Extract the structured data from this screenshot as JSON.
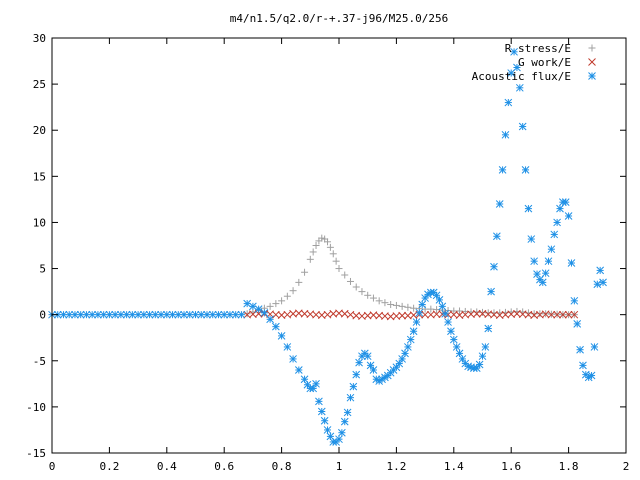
{
  "chart_data": {
    "type": "scatter",
    "title": "m4/n1.5/q2.0/r-+.37-j96/M25.0/256",
    "xlabel": "",
    "ylabel": "",
    "xlim": [
      0,
      2
    ],
    "ylim": [
      -15,
      30
    ],
    "x_ticks": [
      "0",
      "0.2",
      "0.4",
      "0.6",
      "0.8",
      "1",
      "1.2",
      "1.4",
      "1.6",
      "1.8",
      "2"
    ],
    "y_ticks": [
      "-15",
      "-10",
      "-5",
      "0",
      "5",
      "10",
      "15",
      "20",
      "25",
      "30"
    ],
    "grid": false,
    "legend_position": "top-right",
    "series": [
      {
        "name": "R stress/E",
        "marker": "plus",
        "color": "#a0a0a0",
        "points": [
          [
            0.68,
            0.1
          ],
          [
            0.7,
            0.3
          ],
          [
            0.72,
            0.5
          ],
          [
            0.74,
            0.7
          ],
          [
            0.76,
            0.9
          ],
          [
            0.78,
            1.2
          ],
          [
            0.8,
            1.5
          ],
          [
            0.82,
            2.0
          ],
          [
            0.84,
            2.6
          ],
          [
            0.86,
            3.5
          ],
          [
            0.88,
            4.6
          ],
          [
            0.9,
            6.0
          ],
          [
            0.91,
            6.8
          ],
          [
            0.92,
            7.5
          ],
          [
            0.93,
            8.0
          ],
          [
            0.94,
            8.3
          ],
          [
            0.95,
            8.2
          ],
          [
            0.96,
            7.9
          ],
          [
            0.97,
            7.3
          ],
          [
            0.98,
            6.6
          ],
          [
            0.99,
            5.8
          ],
          [
            1.0,
            5.0
          ],
          [
            1.02,
            4.3
          ],
          [
            1.04,
            3.6
          ],
          [
            1.06,
            3.0
          ],
          [
            1.08,
            2.5
          ],
          [
            1.1,
            2.1
          ],
          [
            1.12,
            1.8
          ],
          [
            1.14,
            1.5
          ],
          [
            1.16,
            1.3
          ],
          [
            1.18,
            1.1
          ],
          [
            1.2,
            1.0
          ],
          [
            1.22,
            0.9
          ],
          [
            1.24,
            0.8
          ],
          [
            1.26,
            0.7
          ],
          [
            1.28,
            0.65
          ],
          [
            1.3,
            0.6
          ],
          [
            1.32,
            0.6
          ],
          [
            1.34,
            0.55
          ],
          [
            1.36,
            0.5
          ],
          [
            1.38,
            0.45
          ],
          [
            1.4,
            0.4
          ],
          [
            1.42,
            0.4
          ],
          [
            1.44,
            0.35
          ],
          [
            1.46,
            0.3
          ],
          [
            1.48,
            0.3
          ],
          [
            1.5,
            0.25
          ],
          [
            1.52,
            0.2
          ],
          [
            1.54,
            0.2
          ],
          [
            1.56,
            0.2
          ],
          [
            1.58,
            0.25
          ],
          [
            1.6,
            0.3
          ],
          [
            1.62,
            0.35
          ],
          [
            1.64,
            0.3
          ],
          [
            1.66,
            0.2
          ],
          [
            1.68,
            0.1
          ],
          [
            1.7,
            0.1
          ],
          [
            1.72,
            0.1
          ],
          [
            1.74,
            0.05
          ],
          [
            1.76,
            0.05
          ],
          [
            1.78,
            0.0
          ],
          [
            1.8,
            0.0
          ],
          [
            1.82,
            0.0
          ]
        ]
      },
      {
        "name": "G work/E",
        "marker": "cross",
        "color": "#c0392b",
        "points": [
          [
            0.68,
            0.0
          ],
          [
            0.7,
            0.05
          ],
          [
            0.72,
            0.1
          ],
          [
            0.74,
            0.1
          ],
          [
            0.76,
            0.05
          ],
          [
            0.78,
            0.0
          ],
          [
            0.8,
            -0.05
          ],
          [
            0.82,
            0.0
          ],
          [
            0.84,
            0.1
          ],
          [
            0.86,
            0.15
          ],
          [
            0.88,
            0.1
          ],
          [
            0.9,
            0.05
          ],
          [
            0.92,
            0.0
          ],
          [
            0.94,
            -0.05
          ],
          [
            0.96,
            0.0
          ],
          [
            0.98,
            0.1
          ],
          [
            1.0,
            0.15
          ],
          [
            1.02,
            0.1
          ],
          [
            1.04,
            0.0
          ],
          [
            1.06,
            -0.1
          ],
          [
            1.08,
            -0.15
          ],
          [
            1.1,
            -0.1
          ],
          [
            1.12,
            -0.05
          ],
          [
            1.14,
            -0.1
          ],
          [
            1.16,
            -0.15
          ],
          [
            1.18,
            -0.2
          ],
          [
            1.2,
            -0.15
          ],
          [
            1.22,
            -0.1
          ],
          [
            1.24,
            -0.1
          ],
          [
            1.26,
            -0.05
          ],
          [
            1.28,
            0.0
          ],
          [
            1.3,
            0.0
          ],
          [
            1.32,
            0.0
          ],
          [
            1.34,
            0.05
          ],
          [
            1.36,
            0.05
          ],
          [
            1.38,
            0.0
          ],
          [
            1.4,
            0.0
          ],
          [
            1.42,
            -0.05
          ],
          [
            1.44,
            0.0
          ],
          [
            1.46,
            0.05
          ],
          [
            1.48,
            0.1
          ],
          [
            1.5,
            0.1
          ],
          [
            1.52,
            0.05
          ],
          [
            1.54,
            0.0
          ],
          [
            1.56,
            -0.05
          ],
          [
            1.58,
            0.0
          ],
          [
            1.6,
            0.05
          ],
          [
            1.62,
            0.1
          ],
          [
            1.64,
            0.05
          ],
          [
            1.66,
            0.0
          ],
          [
            1.68,
            -0.05
          ],
          [
            1.7,
            0.0
          ],
          [
            1.72,
            0.05
          ],
          [
            1.74,
            0.0
          ],
          [
            1.76,
            0.0
          ],
          [
            1.78,
            0.0
          ],
          [
            1.8,
            0.0
          ],
          [
            1.82,
            0.0
          ]
        ]
      },
      {
        "name": "Acoustic flux/E",
        "marker": "star",
        "color": "#1e90e6",
        "points": [
          [
            0.0,
            0.0
          ],
          [
            0.02,
            0.0
          ],
          [
            0.04,
            0.0
          ],
          [
            0.06,
            0.0
          ],
          [
            0.08,
            0.0
          ],
          [
            0.1,
            0.0
          ],
          [
            0.12,
            0.0
          ],
          [
            0.14,
            0.0
          ],
          [
            0.16,
            0.0
          ],
          [
            0.18,
            0.0
          ],
          [
            0.2,
            0.0
          ],
          [
            0.22,
            0.0
          ],
          [
            0.24,
            0.0
          ],
          [
            0.26,
            0.0
          ],
          [
            0.28,
            0.0
          ],
          [
            0.3,
            0.0
          ],
          [
            0.32,
            0.0
          ],
          [
            0.34,
            0.0
          ],
          [
            0.36,
            0.0
          ],
          [
            0.38,
            0.0
          ],
          [
            0.4,
            0.0
          ],
          [
            0.42,
            0.0
          ],
          [
            0.44,
            0.0
          ],
          [
            0.46,
            0.0
          ],
          [
            0.48,
            0.0
          ],
          [
            0.5,
            0.0
          ],
          [
            0.52,
            0.0
          ],
          [
            0.54,
            0.0
          ],
          [
            0.56,
            0.0
          ],
          [
            0.58,
            0.0
          ],
          [
            0.6,
            0.0
          ],
          [
            0.62,
            0.0
          ],
          [
            0.64,
            0.0
          ],
          [
            0.66,
            0.0
          ],
          [
            0.68,
            1.2
          ],
          [
            0.7,
            0.9
          ],
          [
            0.72,
            0.6
          ],
          [
            0.74,
            0.2
          ],
          [
            0.76,
            -0.5
          ],
          [
            0.78,
            -1.3
          ],
          [
            0.8,
            -2.3
          ],
          [
            0.82,
            -3.5
          ],
          [
            0.84,
            -4.8
          ],
          [
            0.86,
            -6.0
          ],
          [
            0.88,
            -7.0
          ],
          [
            0.89,
            -7.6
          ],
          [
            0.9,
            -8.0
          ],
          [
            0.91,
            -8.0
          ],
          [
            0.92,
            -7.5
          ],
          [
            0.93,
            -9.4
          ],
          [
            0.94,
            -10.5
          ],
          [
            0.95,
            -11.5
          ],
          [
            0.96,
            -12.5
          ],
          [
            0.97,
            -13.2
          ],
          [
            0.98,
            -13.8
          ],
          [
            0.99,
            -13.8
          ],
          [
            1.0,
            -13.5
          ],
          [
            1.01,
            -12.8
          ],
          [
            1.02,
            -11.6
          ],
          [
            1.03,
            -10.6
          ],
          [
            1.04,
            -9.0
          ],
          [
            1.05,
            -7.8
          ],
          [
            1.06,
            -6.5
          ],
          [
            1.07,
            -5.2
          ],
          [
            1.08,
            -4.5
          ],
          [
            1.09,
            -4.2
          ],
          [
            1.1,
            -4.5
          ],
          [
            1.11,
            -5.5
          ],
          [
            1.12,
            -6.0
          ],
          [
            1.13,
            -7.0
          ],
          [
            1.14,
            -7.2
          ],
          [
            1.15,
            -7.0
          ],
          [
            1.16,
            -6.8
          ],
          [
            1.17,
            -6.6
          ],
          [
            1.18,
            -6.3
          ],
          [
            1.19,
            -6.0
          ],
          [
            1.2,
            -5.7
          ],
          [
            1.21,
            -5.3
          ],
          [
            1.22,
            -4.8
          ],
          [
            1.23,
            -4.2
          ],
          [
            1.24,
            -3.5
          ],
          [
            1.25,
            -2.7
          ],
          [
            1.26,
            -1.8
          ],
          [
            1.27,
            -0.8
          ],
          [
            1.28,
            0.2
          ],
          [
            1.29,
            1.1
          ],
          [
            1.3,
            1.8
          ],
          [
            1.31,
            2.2
          ],
          [
            1.32,
            2.4
          ],
          [
            1.33,
            2.4
          ],
          [
            1.34,
            2.1
          ],
          [
            1.35,
            1.6
          ],
          [
            1.36,
            0.9
          ],
          [
            1.37,
            0.1
          ],
          [
            1.38,
            -0.8
          ],
          [
            1.39,
            -1.8
          ],
          [
            1.4,
            -2.7
          ],
          [
            1.41,
            -3.5
          ],
          [
            1.42,
            -4.2
          ],
          [
            1.43,
            -4.8
          ],
          [
            1.44,
            -5.3
          ],
          [
            1.45,
            -5.6
          ],
          [
            1.46,
            -5.7
          ],
          [
            1.47,
            -5.8
          ],
          [
            1.48,
            -5.8
          ],
          [
            1.49,
            -5.4
          ],
          [
            1.5,
            -4.5
          ],
          [
            1.51,
            -3.5
          ],
          [
            1.52,
            -1.5
          ],
          [
            1.53,
            2.5
          ],
          [
            1.54,
            5.2
          ],
          [
            1.55,
            8.5
          ],
          [
            1.56,
            12.0
          ],
          [
            1.57,
            15.7
          ],
          [
            1.58,
            19.5
          ],
          [
            1.59,
            23.0
          ],
          [
            1.6,
            26.2
          ],
          [
            1.61,
            28.5
          ],
          [
            1.62,
            26.8
          ],
          [
            1.63,
            24.6
          ],
          [
            1.64,
            20.4
          ],
          [
            1.65,
            15.7
          ],
          [
            1.66,
            11.5
          ],
          [
            1.67,
            8.2
          ],
          [
            1.68,
            5.8
          ],
          [
            1.69,
            4.4
          ],
          [
            1.7,
            3.8
          ],
          [
            1.71,
            3.5
          ],
          [
            1.72,
            4.5
          ],
          [
            1.73,
            5.8
          ],
          [
            1.74,
            7.1
          ],
          [
            1.75,
            8.7
          ],
          [
            1.76,
            10.0
          ],
          [
            1.77,
            11.5
          ],
          [
            1.78,
            12.2
          ],
          [
            1.79,
            12.2
          ],
          [
            1.8,
            10.7
          ],
          [
            1.81,
            5.6
          ],
          [
            1.82,
            1.5
          ],
          [
            1.83,
            -1.0
          ],
          [
            1.84,
            -3.8
          ],
          [
            1.85,
            -5.5
          ],
          [
            1.86,
            -6.5
          ],
          [
            1.87,
            -6.8
          ],
          [
            1.88,
            -6.6
          ],
          [
            1.89,
            -3.5
          ],
          [
            1.9,
            3.3
          ],
          [
            1.91,
            4.8
          ],
          [
            1.92,
            3.5
          ]
        ]
      }
    ]
  }
}
